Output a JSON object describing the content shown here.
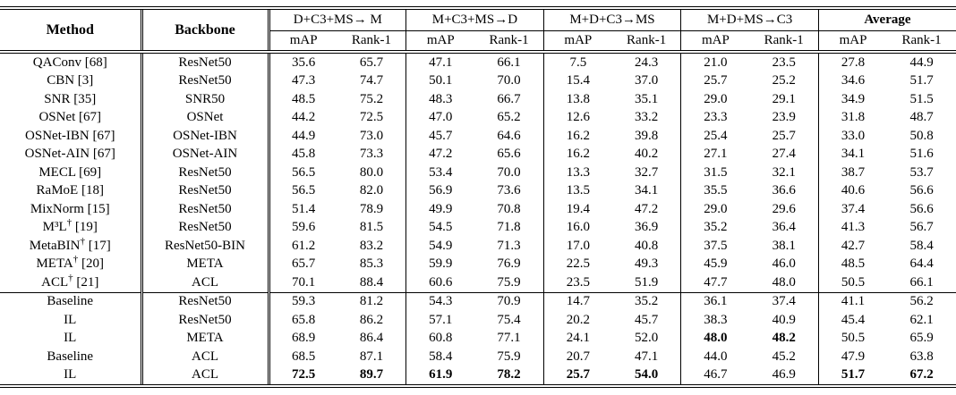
{
  "colors": {
    "text": "#000000",
    "border": "#000000",
    "background": "#ffffff"
  },
  "table": {
    "header": {
      "method": "Method",
      "backbone": "Backbone",
      "groups": [
        {
          "label": "D+C3+MS→ M",
          "bold": false
        },
        {
          "label": "M+C3+MS→D",
          "bold": false
        },
        {
          "label": "M+D+C3→MS",
          "bold": false
        },
        {
          "label": "M+D+MS→C3",
          "bold": false
        },
        {
          "label": "Average",
          "bold": true
        }
      ],
      "subheaders": [
        "mAP",
        "Rank-1"
      ]
    },
    "rows": [
      {
        "method": "QAConv [68]",
        "backbone": "ResNet50",
        "values": [
          "35.6",
          "65.7",
          "47.1",
          "66.1",
          "7.5",
          "24.3",
          "21.0",
          "23.5",
          "27.8",
          "44.9"
        ],
        "bold_values": [],
        "section_start": false
      },
      {
        "method": "CBN [3]",
        "backbone": "ResNet50",
        "values": [
          "47.3",
          "74.7",
          "50.1",
          "70.0",
          "15.4",
          "37.0",
          "25.7",
          "25.2",
          "34.6",
          "51.7"
        ],
        "bold_values": [],
        "section_start": false
      },
      {
        "method": "SNR [35]",
        "backbone": "SNR50",
        "values": [
          "48.5",
          "75.2",
          "48.3",
          "66.7",
          "13.8",
          "35.1",
          "29.0",
          "29.1",
          "34.9",
          "51.5"
        ],
        "bold_values": [],
        "section_start": false
      },
      {
        "method": "OSNet [67]",
        "backbone": "OSNet",
        "values": [
          "44.2",
          "72.5",
          "47.0",
          "65.2",
          "12.6",
          "33.2",
          "23.3",
          "23.9",
          "31.8",
          "48.7"
        ],
        "bold_values": [],
        "section_start": false
      },
      {
        "method": "OSNet-IBN [67]",
        "backbone": "OSNet-IBN",
        "values": [
          "44.9",
          "73.0",
          "45.7",
          "64.6",
          "16.2",
          "39.8",
          "25.4",
          "25.7",
          "33.0",
          "50.8"
        ],
        "bold_values": [],
        "section_start": false
      },
      {
        "method": "OSNet-AIN [67]",
        "backbone": "OSNet-AIN",
        "values": [
          "45.8",
          "73.3",
          "47.2",
          "65.6",
          "16.2",
          "40.2",
          "27.1",
          "27.4",
          "34.1",
          "51.6"
        ],
        "bold_values": [],
        "section_start": false
      },
      {
        "method": "MECL [69]",
        "backbone": "ResNet50",
        "values": [
          "56.5",
          "80.0",
          "53.4",
          "70.0",
          "13.3",
          "32.7",
          "31.5",
          "32.1",
          "38.7",
          "53.7"
        ],
        "bold_values": [],
        "section_start": false
      },
      {
        "method": "RaMoE [18]",
        "backbone": "ResNet50",
        "values": [
          "56.5",
          "82.0",
          "56.9",
          "73.6",
          "13.5",
          "34.1",
          "35.5",
          "36.6",
          "40.6",
          "56.6"
        ],
        "bold_values": [],
        "section_start": false
      },
      {
        "method": "MixNorm [15]",
        "backbone": "ResNet50",
        "values": [
          "51.4",
          "78.9",
          "49.9",
          "70.8",
          "19.4",
          "47.2",
          "29.0",
          "29.6",
          "37.4",
          "56.6"
        ],
        "bold_values": [],
        "section_start": false
      },
      {
        "method": "M³L† [19]",
        "backbone": "ResNet50",
        "values": [
          "59.6",
          "81.5",
          "54.5",
          "71.8",
          "16.0",
          "36.9",
          "35.2",
          "36.4",
          "41.3",
          "56.7"
        ],
        "bold_values": [],
        "section_start": false
      },
      {
        "method": "MetaBIN† [17]",
        "backbone": "ResNet50-BIN",
        "values": [
          "61.2",
          "83.2",
          "54.9",
          "71.3",
          "17.0",
          "40.8",
          "37.5",
          "38.1",
          "42.7",
          "58.4"
        ],
        "bold_values": [],
        "section_start": false
      },
      {
        "method": "META† [20]",
        "backbone": "META",
        "values": [
          "65.7",
          "85.3",
          "59.9",
          "76.9",
          "22.5",
          "49.3",
          "45.9",
          "46.0",
          "48.5",
          "64.4"
        ],
        "bold_values": [],
        "section_start": false
      },
      {
        "method": "ACL† [21]",
        "backbone": "ACL",
        "values": [
          "70.1",
          "88.4",
          "60.6",
          "75.9",
          "23.5",
          "51.9",
          "47.7",
          "48.0",
          "50.5",
          "66.1"
        ],
        "bold_values": [],
        "section_start": false
      },
      {
        "method": "Baseline",
        "backbone": "ResNet50",
        "values": [
          "59.3",
          "81.2",
          "54.3",
          "70.9",
          "14.7",
          "35.2",
          "36.1",
          "37.4",
          "41.1",
          "56.2"
        ],
        "bold_values": [],
        "section_start": true
      },
      {
        "method": "IL",
        "backbone": "ResNet50",
        "values": [
          "65.8",
          "86.2",
          "57.1",
          "75.4",
          "20.2",
          "45.7",
          "38.3",
          "40.9",
          "45.4",
          "62.1"
        ],
        "bold_values": [],
        "section_start": false
      },
      {
        "method": "IL",
        "backbone": "META",
        "values": [
          "68.9",
          "86.4",
          "60.8",
          "77.1",
          "24.1",
          "52.0",
          "48.0",
          "48.2",
          "50.5",
          "65.9"
        ],
        "bold_values": [
          6,
          7
        ],
        "section_start": false
      },
      {
        "method": "Baseline",
        "backbone": "ACL",
        "values": [
          "68.5",
          "87.1",
          "58.4",
          "75.9",
          "20.7",
          "47.1",
          "44.0",
          "45.2",
          "47.9",
          "63.8"
        ],
        "bold_values": [],
        "section_start": false
      },
      {
        "method": "IL",
        "backbone": "ACL",
        "values": [
          "72.5",
          "89.7",
          "61.9",
          "78.2",
          "25.7",
          "54.0",
          "46.7",
          "46.9",
          "51.7",
          "67.2"
        ],
        "bold_values": [
          0,
          1,
          2,
          3,
          4,
          5,
          8,
          9
        ],
        "section_start": false
      }
    ]
  }
}
